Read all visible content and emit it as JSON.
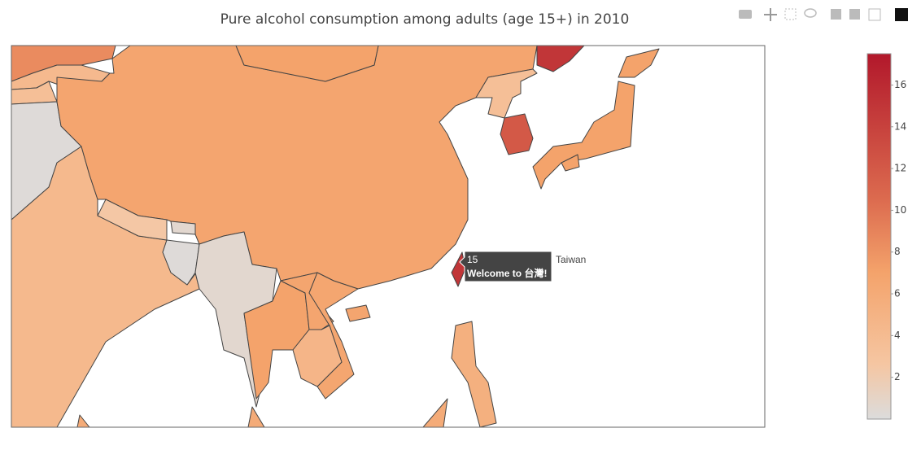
{
  "chart_data": {
    "type": "choropleth",
    "title": "Pure alcohol consumption among adults (age 15+) in 2010",
    "values": [
      8.5,
      4.2,
      3.5,
      0.2,
      4.3,
      6.7,
      7,
      15,
      3.5,
      12,
      7,
      2.5,
      0.6,
      0.2,
      0.6,
      7,
      6.7,
      6.6,
      4.7,
      15,
      5.4,
      6
    ],
    "zlim": [
      0,
      17.5
    ],
    "colorbar_ticks": [
      2,
      4,
      6,
      8,
      10,
      12,
      14,
      16
    ],
    "colorscale": [
      [
        0,
        "#dcdcdc"
      ],
      [
        0.15,
        "#f5c6a2"
      ],
      [
        0.4,
        "#f4a36b"
      ],
      [
        0.6,
        "#dc6b4f"
      ],
      [
        1,
        "#b2182b"
      ]
    ],
    "hover": {
      "text": "Welcome to 台灣!",
      "name": "Taiwan"
    }
  }
}
